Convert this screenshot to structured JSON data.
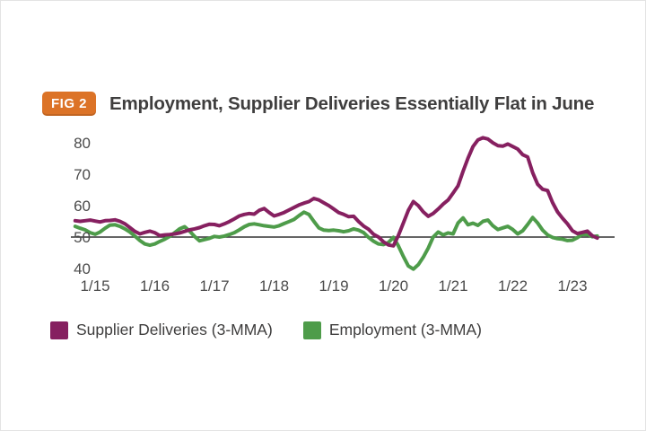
{
  "figure": {
    "badge": {
      "label": "FIG 2",
      "bg": "#dc7327"
    },
    "title": "Employment, Supplier Deliveries Essentially Flat in June"
  },
  "legend": [
    {
      "label": "Supplier Deliveries (3-MMA)",
      "color": "#862060"
    },
    {
      "label": "Employment (3-MMA)",
      "color": "#4e9c4a"
    }
  ],
  "chart_data": {
    "type": "line",
    "title": "Employment, Supplier Deliveries Essentially Flat in June",
    "period": "Sep 2014 - Jun 2023, monthly",
    "x_tick_labels": [
      "1/15",
      "1/16",
      "1/17",
      "1/18",
      "1/19",
      "1/20",
      "1/21",
      "1/22",
      "1/23"
    ],
    "y_ticks": [
      80,
      70,
      60,
      50,
      40
    ],
    "ylim": [
      37,
      85
    ],
    "baseline": 50,
    "baseline_color": "#333333",
    "grid": false,
    "legend_position": "bottom-left",
    "series": [
      {
        "name": "Supplier Deliveries (3-MMA)",
        "color": "#862060",
        "values": [
          55.2,
          55.0,
          55.2,
          55.4,
          55.1,
          54.8,
          55.2,
          55.3,
          55.5,
          55.0,
          54.2,
          53.0,
          51.8,
          51.0,
          51.5,
          51.9,
          51.4,
          50.5,
          50.7,
          50.8,
          51.0,
          51.3,
          51.8,
          52.3,
          52.6,
          53.0,
          53.6,
          54.1,
          54.0,
          53.6,
          54.2,
          54.9,
          55.8,
          56.7,
          57.2,
          57.5,
          57.3,
          58.5,
          59.1,
          57.8,
          56.7,
          57.2,
          57.8,
          58.6,
          59.4,
          60.2,
          60.8,
          61.3,
          62.3,
          61.8,
          60.9,
          60.0,
          58.9,
          57.8,
          57.2,
          56.5,
          56.6,
          54.9,
          53.5,
          52.5,
          50.9,
          50.0,
          48.5,
          47.5,
          47.2,
          50.5,
          54.5,
          58.5,
          61.3,
          60.0,
          58.0,
          56.6,
          57.5,
          58.9,
          60.5,
          61.8,
          64.0,
          66.3,
          70.9,
          75.1,
          78.8,
          80.9,
          81.6,
          81.2,
          80.0,
          79.1,
          78.9,
          79.6,
          78.8,
          78.0,
          76.2,
          75.5,
          70.5,
          66.8,
          65.2,
          64.8,
          61.0,
          58.0,
          56.0,
          54.2,
          52.0,
          51.1,
          51.5,
          51.9,
          50.4,
          49.7
        ]
      },
      {
        "name": "Employment (3-MMA)",
        "color": "#4e9c4a",
        "values": [
          53.4,
          52.8,
          52.3,
          51.4,
          50.9,
          51.6,
          52.8,
          53.8,
          53.9,
          53.4,
          52.6,
          51.6,
          50.3,
          48.9,
          47.8,
          47.4,
          47.8,
          48.6,
          49.3,
          50.2,
          51.4,
          52.6,
          53.3,
          51.9,
          50.2,
          48.8,
          49.2,
          49.6,
          50.2,
          50.0,
          50.3,
          50.8,
          51.4,
          52.3,
          53.3,
          54.0,
          54.2,
          53.9,
          53.6,
          53.4,
          53.2,
          53.6,
          54.3,
          54.9,
          55.6,
          56.8,
          57.9,
          57.2,
          55.0,
          52.9,
          52.2,
          52.1,
          52.2,
          52.0,
          51.7,
          52.0,
          52.6,
          52.2,
          51.4,
          49.9,
          48.7,
          47.8,
          47.6,
          48.3,
          49.9,
          47.2,
          43.8,
          40.8,
          39.8,
          41.2,
          43.6,
          46.5,
          50.0,
          51.6,
          50.7,
          51.3,
          51.0,
          54.5,
          56.1,
          53.9,
          54.4,
          53.7,
          55.0,
          55.4,
          53.6,
          52.4,
          52.9,
          53.4,
          52.4,
          51.0,
          52.0,
          54.0,
          56.2,
          54.5,
          52.2,
          50.7,
          49.9,
          49.5,
          49.3,
          48.9,
          49.0,
          49.8,
          50.9,
          50.8,
          50.1,
          50.3
        ]
      }
    ]
  }
}
